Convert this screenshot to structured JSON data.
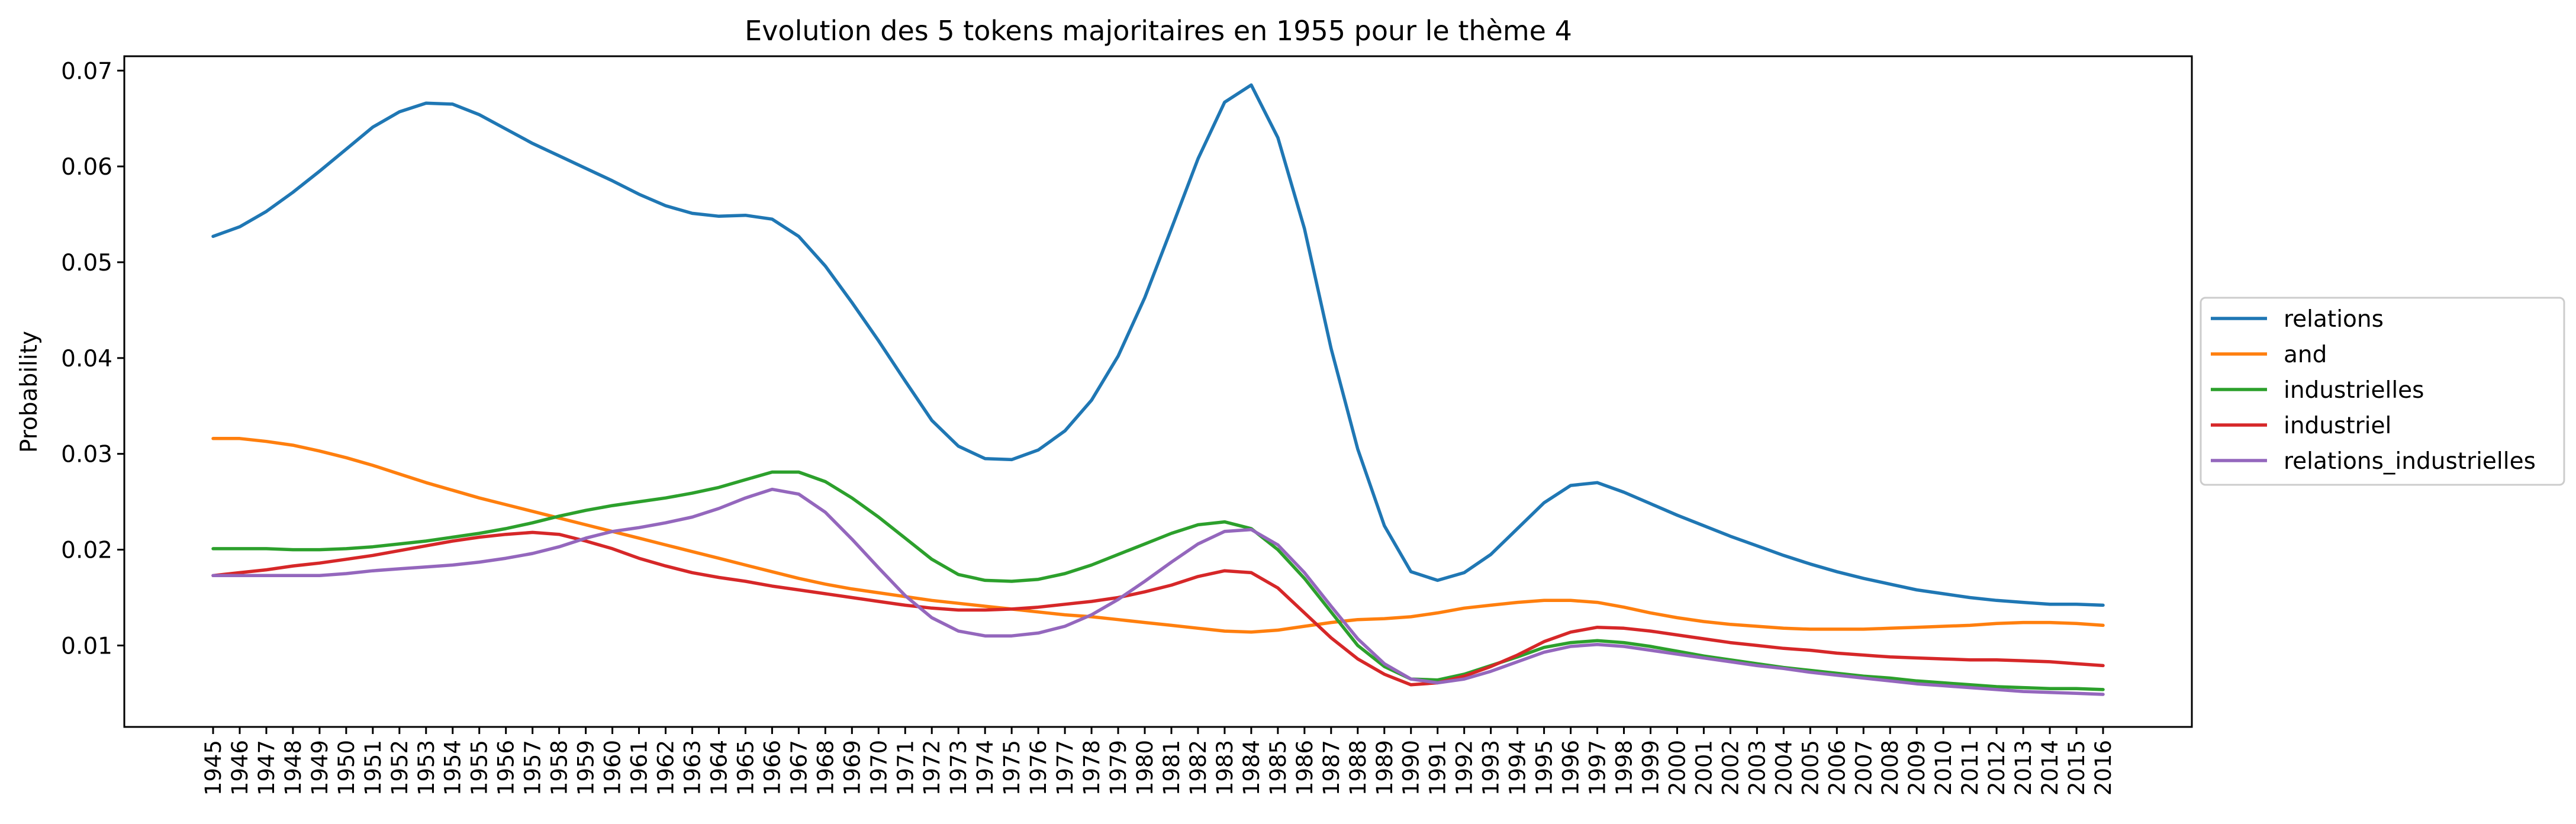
{
  "chart_data": {
    "type": "line",
    "title": "Evolution des 5 tokens majoritaires en 1955 pour le thème 4",
    "xlabel": "",
    "ylabel": "Probability",
    "ylim": [
      0.0015,
      0.0715
    ],
    "yticks": [
      0.01,
      0.02,
      0.03,
      0.04,
      0.05,
      0.06,
      0.07
    ],
    "ytick_labels": [
      "0.01",
      "0.02",
      "0.03",
      "0.04",
      "0.05",
      "0.06",
      "0.07"
    ],
    "grid": false,
    "legend_position": "center-right, outside plot",
    "x": [
      "1945",
      "1946",
      "1947",
      "1948",
      "1949",
      "1950",
      "1951",
      "1952",
      "1953",
      "1954",
      "1955",
      "1956",
      "1957",
      "1958",
      "1959",
      "1960",
      "1961",
      "1962",
      "1963",
      "1964",
      "1965",
      "1966",
      "1967",
      "1968",
      "1969",
      "1970",
      "1971",
      "1972",
      "1973",
      "1974",
      "1975",
      "1976",
      "1977",
      "1978",
      "1979",
      "1980",
      "1981",
      "1982",
      "1983",
      "1984",
      "1985",
      "1986",
      "1987",
      "1988",
      "1989",
      "1990",
      "1991",
      "1992",
      "1993",
      "1994",
      "1995",
      "1996",
      "1997",
      "1998",
      "1999",
      "2000",
      "2001",
      "2002",
      "2003",
      "2004",
      "2005",
      "2006",
      "2007",
      "2008",
      "2009",
      "2010",
      "2011",
      "2012",
      "2013",
      "2014",
      "2015",
      "2016"
    ],
    "series": [
      {
        "name": "relations",
        "color": "#1f77b4",
        "values": [
          0.0527,
          0.0537,
          0.0553,
          0.0573,
          0.0595,
          0.0618,
          0.0641,
          0.0657,
          0.0666,
          0.0665,
          0.0654,
          0.0639,
          0.0624,
          0.0611,
          0.0598,
          0.0585,
          0.0571,
          0.0559,
          0.0551,
          0.0548,
          0.0549,
          0.0545,
          0.0527,
          0.0496,
          0.0458,
          0.0418,
          0.0376,
          0.0335,
          0.0308,
          0.0295,
          0.0294,
          0.0304,
          0.0324,
          0.0356,
          0.0402,
          0.0463,
          0.0535,
          0.0608,
          0.0667,
          0.0685,
          0.063,
          0.0535,
          0.041,
          0.0305,
          0.0225,
          0.0177,
          0.0168,
          0.0176,
          0.0195,
          0.0222,
          0.0249,
          0.0267,
          0.027,
          0.026,
          0.0248,
          0.0236,
          0.0225,
          0.0214,
          0.0204,
          0.0194,
          0.0185,
          0.0177,
          0.017,
          0.0164,
          0.0158,
          0.0154,
          0.015,
          0.0147,
          0.0145,
          0.0143,
          0.0143,
          0.0142
        ]
      },
      {
        "name": "and",
        "color": "#ff7f0e",
        "values": [
          0.0316,
          0.0316,
          0.0313,
          0.0309,
          0.0303,
          0.0296,
          0.0288,
          0.0279,
          0.027,
          0.0262,
          0.0254,
          0.0247,
          0.024,
          0.0233,
          0.0226,
          0.0219,
          0.0212,
          0.0205,
          0.0198,
          0.0191,
          0.0184,
          0.0177,
          0.017,
          0.0164,
          0.0159,
          0.0155,
          0.0151,
          0.0147,
          0.0144,
          0.0141,
          0.0138,
          0.0135,
          0.0132,
          0.013,
          0.0127,
          0.0124,
          0.0121,
          0.0118,
          0.0115,
          0.0114,
          0.0116,
          0.012,
          0.0124,
          0.0127,
          0.0128,
          0.013,
          0.0134,
          0.0139,
          0.0142,
          0.0145,
          0.0147,
          0.0147,
          0.0145,
          0.014,
          0.0134,
          0.0129,
          0.0125,
          0.0122,
          0.012,
          0.0118,
          0.0117,
          0.0117,
          0.0117,
          0.0118,
          0.0119,
          0.012,
          0.0121,
          0.0123,
          0.0124,
          0.0124,
          0.0123,
          0.0121
        ]
      },
      {
        "name": "industrielles",
        "color": "#2ca02c",
        "values": [
          0.0201,
          0.0201,
          0.0201,
          0.02,
          0.02,
          0.0201,
          0.0203,
          0.0206,
          0.0209,
          0.0213,
          0.0217,
          0.0222,
          0.0228,
          0.0235,
          0.0241,
          0.0246,
          0.025,
          0.0254,
          0.0259,
          0.0265,
          0.0273,
          0.0281,
          0.0281,
          0.0271,
          0.0254,
          0.0234,
          0.0212,
          0.019,
          0.0174,
          0.0168,
          0.0167,
          0.0169,
          0.0175,
          0.0184,
          0.0195,
          0.0206,
          0.0217,
          0.0226,
          0.0229,
          0.0222,
          0.02,
          0.017,
          0.0135,
          0.01,
          0.0078,
          0.0065,
          0.0064,
          0.007,
          0.0079,
          0.0088,
          0.0098,
          0.0103,
          0.0105,
          0.0103,
          0.0099,
          0.0094,
          0.0089,
          0.0085,
          0.0081,
          0.0077,
          0.0074,
          0.0071,
          0.0068,
          0.0066,
          0.0063,
          0.0061,
          0.0059,
          0.0057,
          0.0056,
          0.0055,
          0.0055,
          0.0054
        ]
      },
      {
        "name": "industriel",
        "color": "#d62728",
        "values": [
          0.0173,
          0.0176,
          0.0179,
          0.0183,
          0.0186,
          0.019,
          0.0194,
          0.0199,
          0.0204,
          0.0209,
          0.0213,
          0.0216,
          0.0218,
          0.0216,
          0.0209,
          0.0201,
          0.0191,
          0.0183,
          0.0176,
          0.0171,
          0.0167,
          0.0162,
          0.0158,
          0.0154,
          0.015,
          0.0146,
          0.0142,
          0.0139,
          0.0137,
          0.0137,
          0.0138,
          0.014,
          0.0143,
          0.0146,
          0.015,
          0.0156,
          0.0163,
          0.0172,
          0.0178,
          0.0176,
          0.016,
          0.0134,
          0.0108,
          0.0086,
          0.007,
          0.0059,
          0.0061,
          0.0068,
          0.0078,
          0.009,
          0.0104,
          0.0114,
          0.0119,
          0.0118,
          0.0115,
          0.0111,
          0.0107,
          0.0103,
          0.01,
          0.0097,
          0.0095,
          0.0092,
          0.009,
          0.0088,
          0.0087,
          0.0086,
          0.0085,
          0.0085,
          0.0084,
          0.0083,
          0.0081,
          0.0079
        ]
      },
      {
        "name": "relations_industrielles",
        "color": "#9467bd",
        "values": [
          0.0173,
          0.0173,
          0.0173,
          0.0173,
          0.0173,
          0.0175,
          0.0178,
          0.018,
          0.0182,
          0.0184,
          0.0187,
          0.0191,
          0.0196,
          0.0203,
          0.0212,
          0.0219,
          0.0223,
          0.0228,
          0.0234,
          0.0243,
          0.0254,
          0.0263,
          0.0258,
          0.0239,
          0.0211,
          0.0181,
          0.0152,
          0.0129,
          0.0115,
          0.011,
          0.011,
          0.0113,
          0.012,
          0.0132,
          0.0148,
          0.0167,
          0.0187,
          0.0206,
          0.0219,
          0.0221,
          0.0205,
          0.0176,
          0.0141,
          0.0107,
          0.0081,
          0.0065,
          0.0061,
          0.0065,
          0.0073,
          0.0083,
          0.0093,
          0.0099,
          0.0101,
          0.0099,
          0.0095,
          0.0091,
          0.0087,
          0.0083,
          0.0079,
          0.0076,
          0.0072,
          0.0069,
          0.0066,
          0.0063,
          0.006,
          0.0058,
          0.0056,
          0.0054,
          0.0052,
          0.0051,
          0.005,
          0.0049
        ]
      }
    ]
  }
}
